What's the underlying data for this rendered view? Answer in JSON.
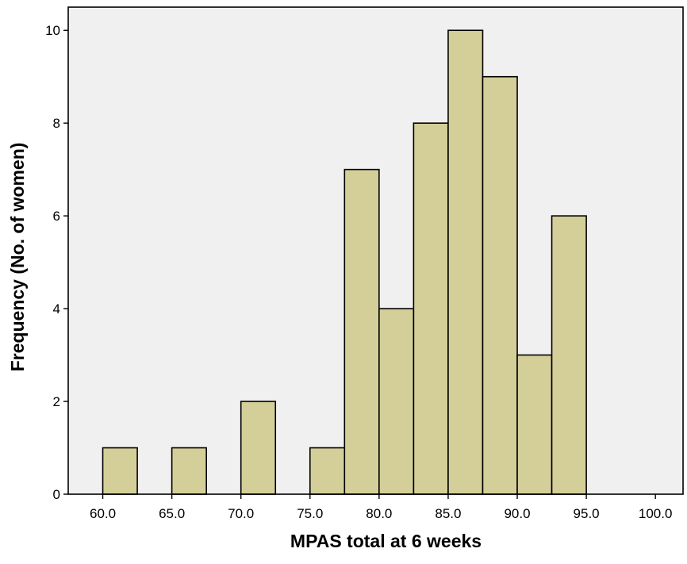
{
  "chart_data": {
    "type": "bar",
    "subtype": "histogram",
    "xlabel": "MPAS total at 6 weeks",
    "ylabel": "Frequency (No. of women)",
    "xlim": [
      57.5,
      102.0
    ],
    "ylim": [
      0,
      10.5
    ],
    "x_ticks": [
      60.0,
      65.0,
      70.0,
      75.0,
      80.0,
      85.0,
      90.0,
      95.0,
      100.0
    ],
    "x_tick_labels": [
      "60.0",
      "65.0",
      "70.0",
      "75.0",
      "80.0",
      "85.0",
      "90.0",
      "95.0",
      "100.0"
    ],
    "y_ticks": [
      0,
      2,
      4,
      6,
      8,
      10
    ],
    "y_tick_labels": [
      "0",
      "2",
      "4",
      "6",
      "8",
      "10"
    ],
    "bin_width": 2.5,
    "bins": [
      {
        "start": 60.0,
        "end": 62.5,
        "count": 1
      },
      {
        "start": 65.0,
        "end": 67.5,
        "count": 1
      },
      {
        "start": 70.0,
        "end": 72.5,
        "count": 2
      },
      {
        "start": 75.0,
        "end": 77.5,
        "count": 1
      },
      {
        "start": 77.5,
        "end": 80.0,
        "count": 7
      },
      {
        "start": 80.0,
        "end": 82.5,
        "count": 4
      },
      {
        "start": 82.5,
        "end": 85.0,
        "count": 8
      },
      {
        "start": 85.0,
        "end": 87.5,
        "count": 10
      },
      {
        "start": 87.5,
        "end": 90.0,
        "count": 9
      },
      {
        "start": 90.0,
        "end": 92.5,
        "count": 3
      },
      {
        "start": 92.5,
        "end": 95.0,
        "count": 6
      }
    ],
    "grid": false,
    "legend": "none",
    "colors": {
      "plot_background": "#f0f0f0",
      "bar_fill": "#d4cf99",
      "bar_stroke": "#000000",
      "axis": "#000000",
      "text": "#000000"
    }
  }
}
